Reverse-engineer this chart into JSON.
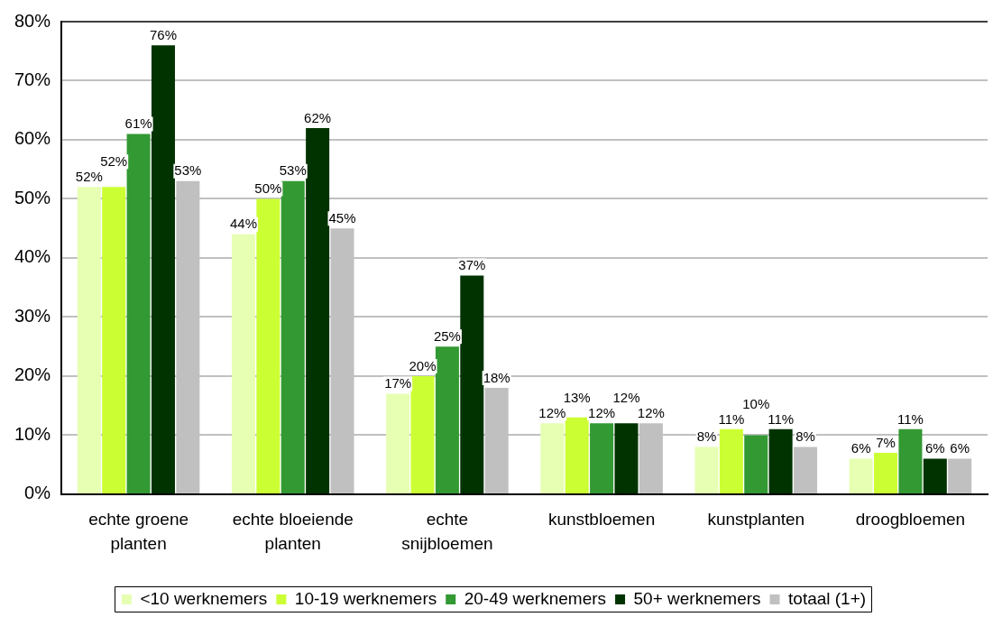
{
  "chart_data": {
    "type": "bar",
    "categories": [
      "echte groene planten",
      "echte bloeiende planten",
      "echte snijbloemen",
      "kunstbloemen",
      "kunstplanten",
      "droogbloemen"
    ],
    "series": [
      {
        "name": "<10 werknemers",
        "color": "#e6ffb3",
        "values": [
          52,
          44,
          17,
          12,
          8,
          6
        ],
        "value_labels": [
          "52%",
          "44%",
          "17%",
          "12%",
          "8%",
          "6%"
        ]
      },
      {
        "name": "10-19 werknemers",
        "color": "#ccff33",
        "values": [
          52,
          50,
          20,
          13,
          11,
          7
        ],
        "value_labels": [
          "52%",
          "50%",
          "20%",
          "13%",
          "11%",
          "7%"
        ]
      },
      {
        "name": "20-49 werknemers",
        "color": "#339933",
        "values": [
          61,
          53,
          25,
          12,
          10,
          11
        ],
        "value_labels": [
          "61%",
          "53%",
          "25%",
          "12%",
          "10%",
          "11%"
        ]
      },
      {
        "name": "50+ werknemers",
        "color": "#003300",
        "values": [
          76,
          62,
          37,
          12,
          11,
          6
        ],
        "value_labels": [
          "76%",
          "62%",
          "37%",
          "12%",
          "11%",
          "6%"
        ]
      },
      {
        "name": "totaal (1+)",
        "color": "#c0c0c0",
        "values": [
          53,
          45,
          18,
          12,
          8,
          6
        ],
        "value_labels": [
          "53%",
          "45%",
          "18%",
          "12%",
          "8%",
          "6%"
        ]
      }
    ],
    "ylim": [
      0,
      80
    ],
    "yticks": [
      {
        "value": 0,
        "label": "0%"
      },
      {
        "value": 10,
        "label": "10%"
      },
      {
        "value": 20,
        "label": "20%"
      },
      {
        "value": 30,
        "label": "30%"
      },
      {
        "value": 40,
        "label": "40%"
      },
      {
        "value": 50,
        "label": "50%"
      },
      {
        "value": 60,
        "label": "60%"
      },
      {
        "value": 70,
        "label": "70%"
      },
      {
        "value": 80,
        "label": "80%"
      }
    ],
    "grid": "y",
    "legend": "bottom"
  }
}
